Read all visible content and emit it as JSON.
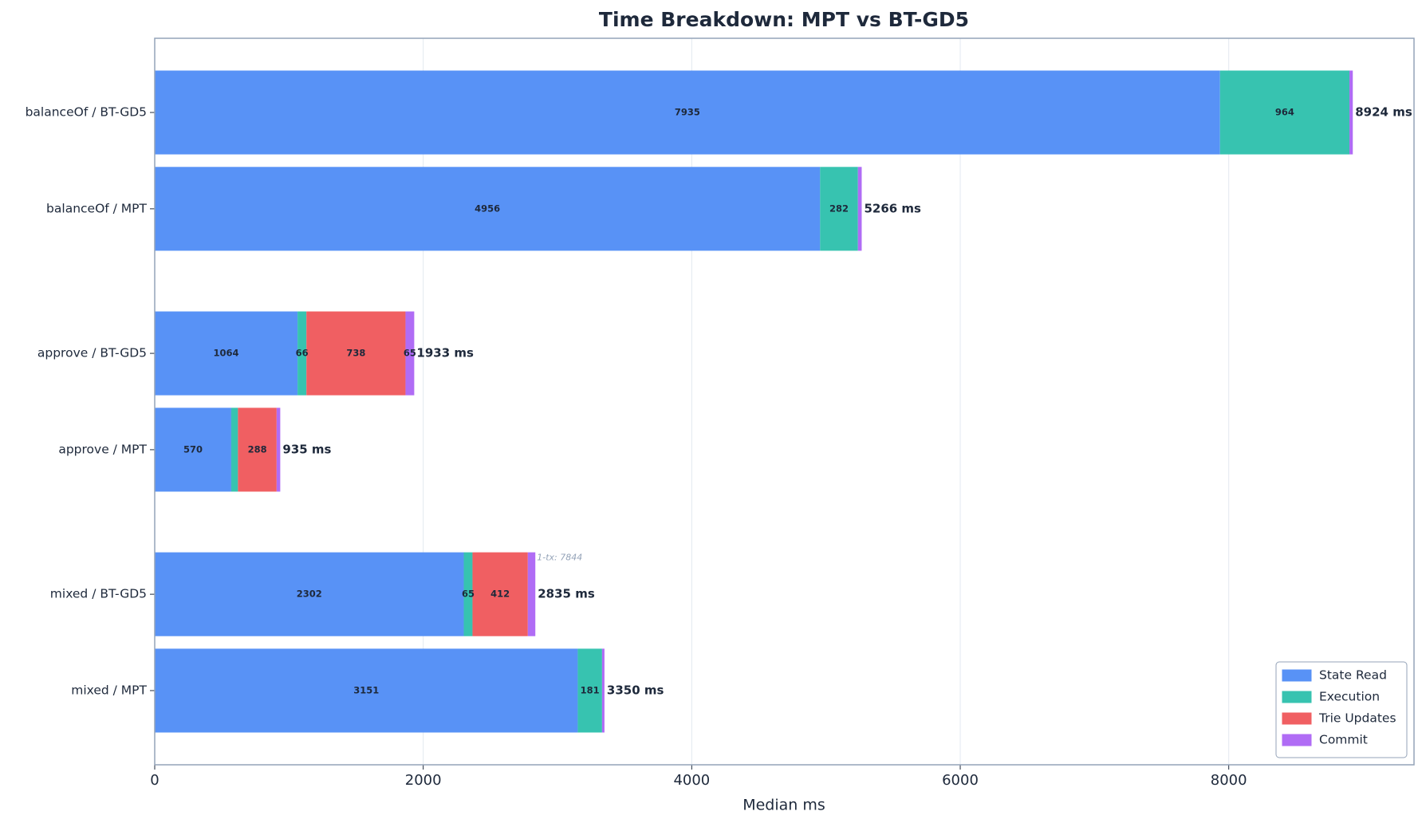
{
  "chart_data": {
    "type": "stacked-barh",
    "title": "Time Breakdown: MPT vs BT-GD5",
    "x_label": "Median ms",
    "categories": [
      "balanceOf / BT-GD5",
      "balanceOf / MPT",
      "approve / BT-GD5",
      "approve / MPT",
      "mixed / BT-GD5",
      "mixed / MPT"
    ],
    "series": [
      {
        "name": "State Read",
        "color": "#5892f6",
        "values": [
          7935,
          4956,
          1064,
          570,
          2302,
          3151
        ]
      },
      {
        "name": "Execution",
        "color": "#37c3b0",
        "values": [
          964,
          282,
          66,
          50,
          65,
          181
        ]
      },
      {
        "name": "Trie Updates",
        "color": "#f05f62",
        "values": [
          0,
          0,
          738,
          288,
          412,
          0
        ]
      },
      {
        "name": "Commit",
        "color": "#b06cf5",
        "values": [
          25,
          28,
          65,
          27,
          56,
          18
        ]
      }
    ],
    "totals": [
      8924,
      5266,
      1933,
      935,
      2835,
      3350
    ],
    "total_labels": [
      "8924 ms",
      "5266 ms",
      "1933 ms",
      "935 ms",
      "2835 ms",
      "3350 ms"
    ],
    "annotation": "1-tx: 7844",
    "xlim": [
      0,
      9380
    ],
    "xticks": [
      0,
      2000,
      4000,
      6000,
      8000
    ],
    "grid": true,
    "legend": "lower right"
  }
}
